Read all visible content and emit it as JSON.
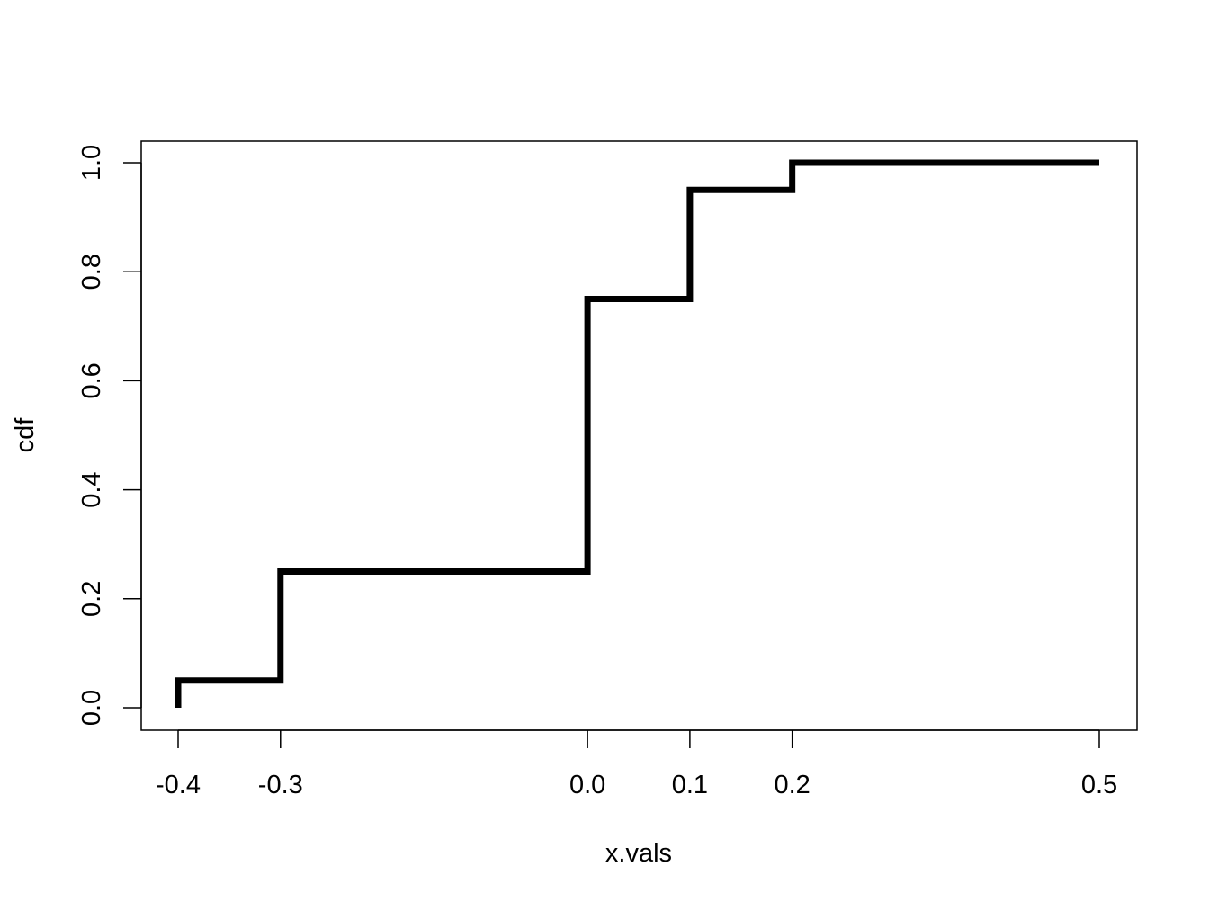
{
  "chart_data": {
    "type": "line",
    "step": true,
    "title": "",
    "xlabel": "x.vals",
    "ylabel": "cdf",
    "x": [
      -0.4,
      -0.4,
      -0.3,
      -0.3,
      0.0,
      0.0,
      0.1,
      0.1,
      0.2,
      0.2,
      0.5
    ],
    "y": [
      0.0,
      0.05,
      0.05,
      0.25,
      0.25,
      0.75,
      0.75,
      0.95,
      0.95,
      1.0,
      1.0
    ],
    "xlim": [
      -0.4,
      0.5
    ],
    "ylim": [
      0.0,
      1.0
    ],
    "x_ticks": [
      {
        "value": -0.4,
        "label": "-0.4"
      },
      {
        "value": -0.3,
        "label": "-0.3"
      },
      {
        "value": 0.0,
        "label": "0.0"
      },
      {
        "value": 0.1,
        "label": "0.1"
      },
      {
        "value": 0.2,
        "label": "0.2"
      },
      {
        "value": 0.5,
        "label": "0.5"
      }
    ],
    "y_ticks": [
      {
        "value": 0.0,
        "label": "0.0"
      },
      {
        "value": 0.2,
        "label": "0.2"
      },
      {
        "value": 0.4,
        "label": "0.4"
      },
      {
        "value": 0.6,
        "label": "0.6"
      },
      {
        "value": 0.8,
        "label": "0.8"
      },
      {
        "value": 1.0,
        "label": "1.0"
      }
    ],
    "grid": false,
    "line_color": "#000000"
  }
}
